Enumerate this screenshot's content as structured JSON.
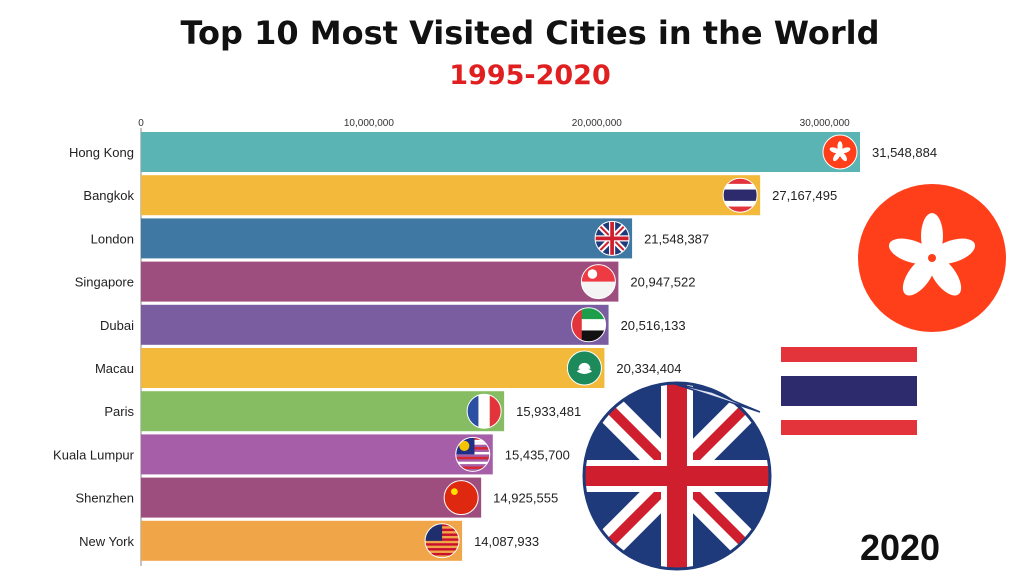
{
  "header": {
    "title": "Top 10 Most Visited Cities in the World",
    "subtitle": "1995-2020"
  },
  "year_label": "2020",
  "colors": {
    "title": "#111111",
    "subtitle": "#e02020",
    "hong_kong_red": "#ff3f1a",
    "thailand_red": "#e3343c",
    "thailand_blue": "#2d2a6e",
    "uk_blue": "#1f3a7a",
    "uk_red": "#cf1f2e"
  },
  "chart_data": {
    "type": "bar",
    "orientation": "horizontal",
    "title": "Top 10 Most Visited Cities in the World",
    "subtitle": "1995-2020",
    "categories": [
      "Hong Kong",
      "Bangkok",
      "London",
      "Singapore",
      "Dubai",
      "Macau",
      "Paris",
      "Kuala Lumpur",
      "Shenzhen",
      "New York"
    ],
    "values": [
      31548884,
      27167495,
      21548387,
      20947522,
      20516133,
      20334404,
      15933481,
      15435700,
      14925555,
      14087933
    ],
    "value_labels": [
      "31,548,884",
      "27,167,495",
      "21,548,387",
      "20,947,522",
      "20,516,133",
      "20,334,404",
      "15,933,481",
      "15,435,700",
      "14,925,555",
      "14,087,933"
    ],
    "bar_colors": [
      "#5ab4b4",
      "#f2b93b",
      "#3f79a3",
      "#9e4e7e",
      "#7a5ca0",
      "#f2b93b",
      "#86bd62",
      "#a65ea8",
      "#9e4e7e",
      "#f0a548"
    ],
    "flag_icons": [
      "hong-kong-flag-icon",
      "thailand-flag-icon",
      "uk-flag-icon",
      "singapore-flag-icon",
      "uae-flag-icon",
      "macau-flag-icon",
      "france-flag-icon",
      "malaysia-flag-icon",
      "china-flag-icon",
      "usa-flag-icon"
    ],
    "xticks": [
      0,
      10000000,
      20000000,
      30000000
    ],
    "xtick_labels": [
      "0",
      "10,000,000",
      "20,000,000",
      "30,000,000"
    ],
    "xlim": [
      0,
      31548884
    ],
    "xlabel": "",
    "ylabel": "",
    "grid": false,
    "legend": "none"
  }
}
